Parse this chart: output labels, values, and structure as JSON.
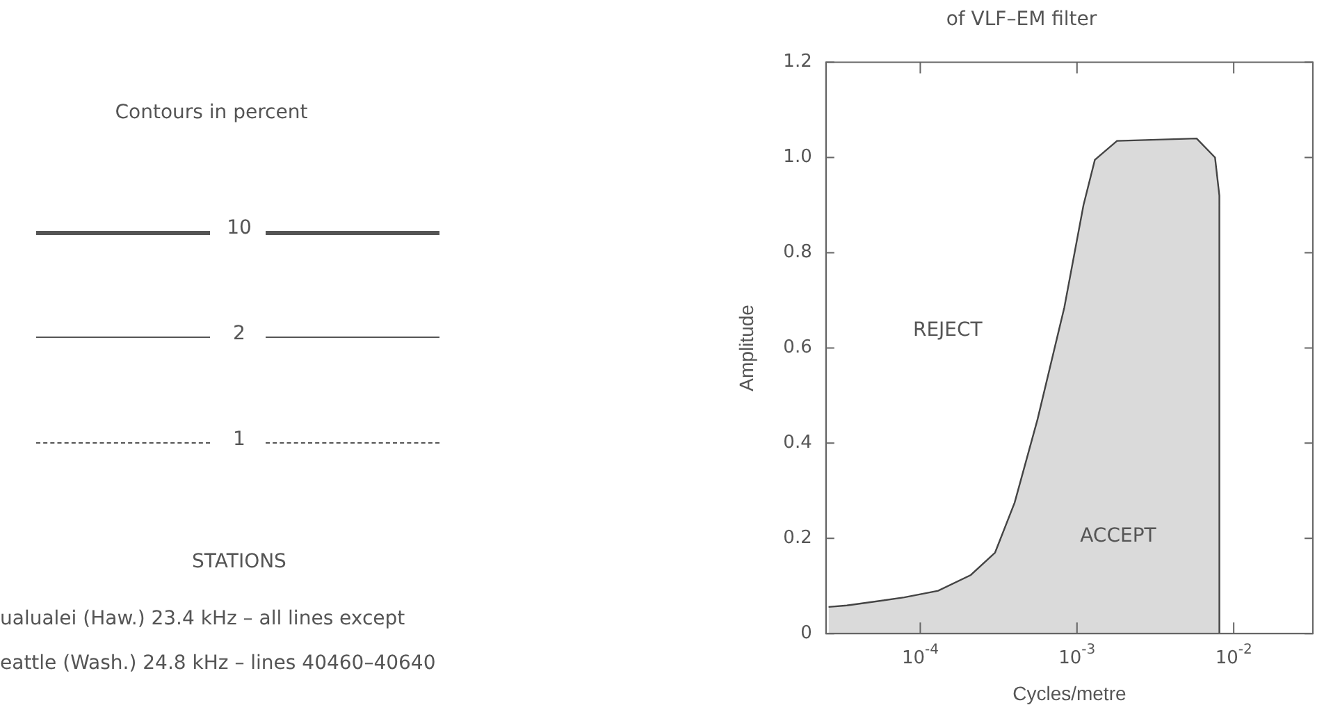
{
  "chart_data": {
    "type": "area",
    "title": "of VLF–EM filter",
    "xlabel": "Cycles/metre",
    "ylabel": "Amplitude",
    "log": "x",
    "xlim": [
      2.5e-05,
      0.032
    ],
    "ylim": [
      0,
      1.2
    ],
    "xticks": [
      {
        "value": 0.0001,
        "label": "10$^{-4}$"
      },
      {
        "value": 0.001,
        "label": "10$^{-3}$"
      },
      {
        "value": 0.01,
        "label": "10$^{-2}$"
      }
    ],
    "yticks": [
      0,
      0.2,
      0.4,
      0.6,
      0.8,
      {
        "value": 1,
        "label": "1.0"
      },
      {
        "value": 1.2,
        "label": "1.2"
      }
    ],
    "grid": false,
    "legend": false,
    "series": [
      {
        "color": "#444444",
        "x": [
          2.6e-05,
          3.4e-05,
          7.9e-05,
          0.00013,
          0.00021,
          0.0003,
          0.0004,
          0.00056,
          0.00083,
          0.0011,
          0.0013,
          0.0018,
          0.0058,
          0.0076,
          0.0081,
          0.0081
        ],
        "values": [
          0.056,
          0.059,
          0.076,
          0.09,
          0.123,
          0.17,
          0.275,
          0.45,
          0.685,
          0.9,
          0.995,
          1.035,
          1.04,
          1.0,
          0.92,
          0
        ]
      }
    ],
    "annotations": [
      "REJECT",
      "ACCEPT",
      "Contours in percent",
      "10",
      "2",
      "1",
      "STATIONS",
      "ualualei (Haw.) 23.4 kHz – all lines except",
      "eattle (Wash.) 24.8 kHz – lines 40460–40640"
    ]
  }
}
